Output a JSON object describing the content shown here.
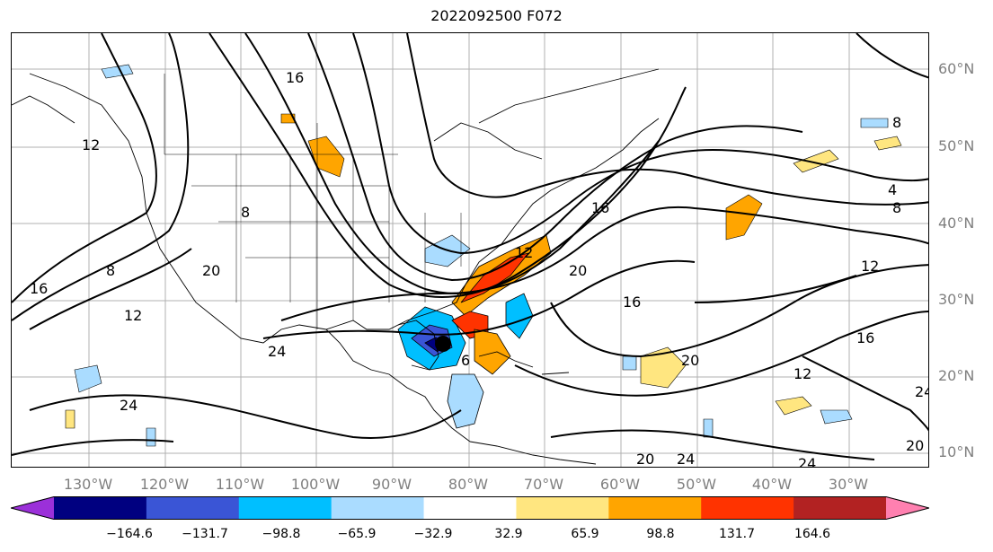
{
  "title": "2022092500 F072",
  "lat_labels": [
    "60°N",
    "50°N",
    "40°N",
    "30°N",
    "20°N",
    "10°N"
  ],
  "lon_labels": [
    "130°W",
    "120°W",
    "110°W",
    "100°W",
    "90°W",
    "80°W",
    "70°W",
    "60°W",
    "50°W",
    "40°W",
    "30°W"
  ],
  "contour_labels": [
    "16",
    "12",
    "8",
    "20",
    "16",
    "12",
    "8",
    "24",
    "20",
    "16",
    "12",
    "8",
    "4",
    "12",
    "16",
    "20",
    "24",
    "20",
    "24",
    "16",
    "12",
    "20",
    "24",
    "8",
    "6",
    "24"
  ],
  "colorbar": {
    "ticks": [
      "−164.6",
      "−131.7",
      "−98.8",
      "−65.9",
      "−32.9",
      "32.9",
      "65.9",
      "98.8",
      "131.7",
      "164.6"
    ],
    "colors": [
      "#9b30d9",
      "#000080",
      "#3a55d6",
      "#00bfff",
      "#aadcff",
      "#ffffff",
      "#ffe680",
      "#ffa500",
      "#ff3300",
      "#b22222",
      "#ff80b0"
    ]
  },
  "storm_marker": "tropical-cyclone-center"
}
